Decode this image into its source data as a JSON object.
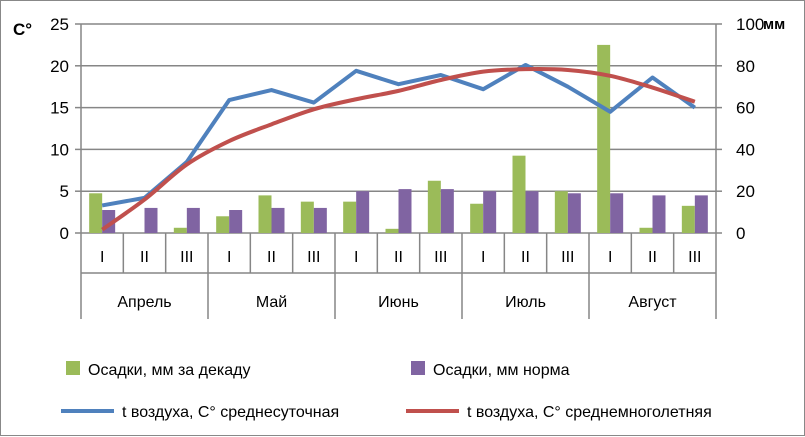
{
  "chart_data": {
    "type": "bar+line",
    "left_axis_label": "C°",
    "right_axis_label": "мм",
    "ylim_left": [
      0,
      25
    ],
    "yticks_left": [
      0,
      5,
      10,
      15,
      20,
      25
    ],
    "ylim_right": [
      0,
      100
    ],
    "yticks_right": [
      0,
      20,
      40,
      60,
      80,
      100
    ],
    "grid": true,
    "legend_position": "bottom",
    "months": [
      "Апрель",
      "Май",
      "Июнь",
      "Июль",
      "Август"
    ],
    "decades": [
      "I",
      "II",
      "III"
    ],
    "series": [
      {
        "name": "Осадки, мм за декаду",
        "type": "bar",
        "axis": "right",
        "color": "#9bbb59",
        "values": [
          19,
          0,
          2.5,
          8,
          18,
          15,
          15,
          2,
          25,
          14,
          37,
          20,
          90,
          2.5,
          13
        ]
      },
      {
        "name": "Осадки, мм норма",
        "type": "bar",
        "axis": "right",
        "color": "#8064a2",
        "values": [
          11,
          12,
          12,
          11,
          12,
          12,
          20,
          21,
          21,
          20,
          20,
          19,
          19,
          18,
          18
        ]
      },
      {
        "name": "t воздуха, C° среднесуточная",
        "type": "line",
        "axis": "left",
        "color": "#4f81bd",
        "values": [
          3.3,
          4.2,
          8.5,
          15.9,
          17.1,
          15.6,
          19.4,
          17.8,
          18.9,
          17.2,
          20.1,
          17.5,
          14.5,
          18.6,
          15.0
        ]
      },
      {
        "name": "t воздуха, C° среднемноголетняя",
        "type": "line",
        "axis": "left",
        "color": "#c0504d",
        "values": [
          0.4,
          4.0,
          8.2,
          11.0,
          13.0,
          14.8,
          16.0,
          17.0,
          18.3,
          19.3,
          19.6,
          19.5,
          18.8,
          17.4,
          15.7
        ]
      }
    ]
  }
}
